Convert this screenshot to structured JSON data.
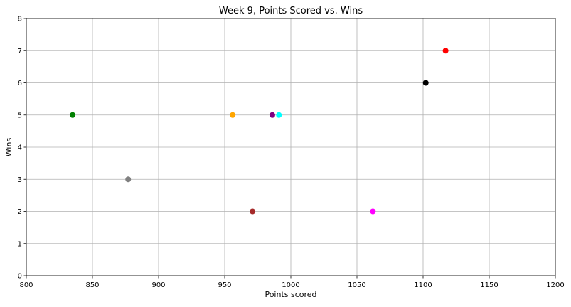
{
  "chart_data": {
    "type": "scatter",
    "title": "Week 9, Points Scored vs. Wins",
    "xlabel": "Points scored",
    "ylabel": "Wins",
    "xlim": [
      800,
      1200
    ],
    "ylim": [
      0,
      8
    ],
    "xticks": [
      800,
      850,
      900,
      950,
      1000,
      1050,
      1100,
      1150,
      1200
    ],
    "yticks": [
      0,
      1,
      2,
      3,
      4,
      5,
      6,
      7,
      8
    ],
    "grid": true,
    "points": [
      {
        "x": 835,
        "y": 5,
        "color": "#008000"
      },
      {
        "x": 877,
        "y": 3,
        "color": "#808080"
      },
      {
        "x": 956,
        "y": 5,
        "color": "#FFA500"
      },
      {
        "x": 971,
        "y": 2,
        "color": "#A52A2A"
      },
      {
        "x": 986,
        "y": 5,
        "color": "#800080"
      },
      {
        "x": 991,
        "y": 5,
        "color": "#00FFFF"
      },
      {
        "x": 1062,
        "y": 2,
        "color": "#FF00FF"
      },
      {
        "x": 1102,
        "y": 6,
        "color": "#000000"
      },
      {
        "x": 1117,
        "y": 7,
        "color": "#FF0000"
      }
    ]
  }
}
